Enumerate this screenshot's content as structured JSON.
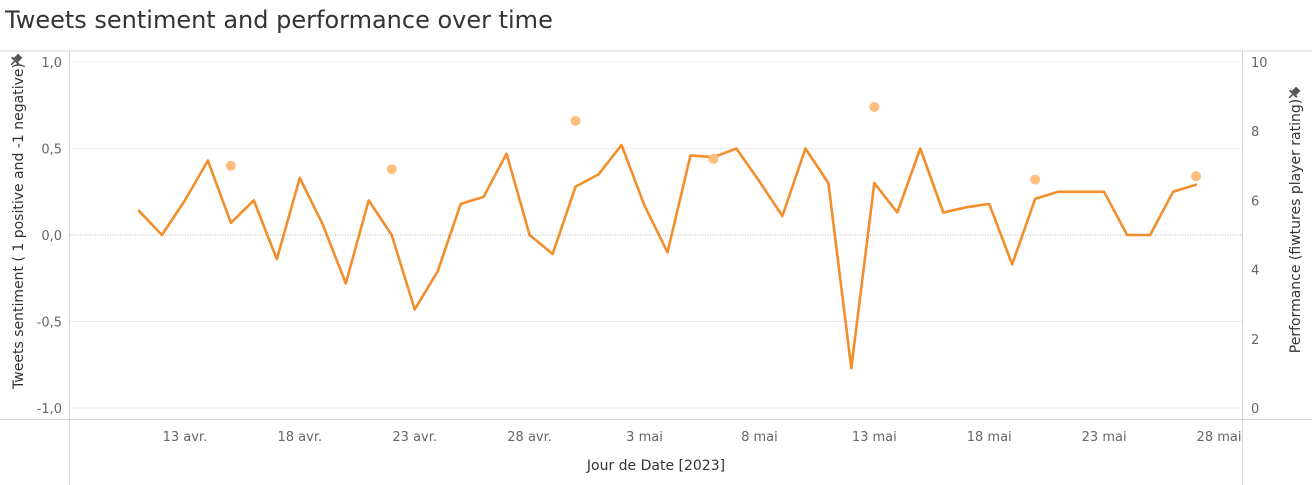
{
  "title": "Tweets sentiment and performance over time",
  "chart_data": {
    "type": "line",
    "title": "Tweets sentiment and performance over time",
    "xlabel": "Jour de Date [2023]",
    "ylabel_left": "Tweets sentiment ( 1 positive and -1 negative)",
    "ylabel_right": "Performance (fiwtures player rating)",
    "x_range": [
      "2023-04-08",
      "2023-05-29"
    ],
    "ylim_left": [
      -1,
      1
    ],
    "ylim_right": [
      0,
      10
    ],
    "ticks_left": [
      "1,0",
      "0,5",
      "0,0",
      "-0,5",
      "-1,0"
    ],
    "ticks_left_values": [
      1,
      0.5,
      0,
      -0.5,
      -1
    ],
    "ticks_right": [
      "10",
      "8",
      "6",
      "4",
      "2",
      "0"
    ],
    "ticks_right_values": [
      10,
      8,
      6,
      4,
      2,
      0
    ],
    "x_ticks": [
      {
        "date": "2023-04-13",
        "label": "13 avr."
      },
      {
        "date": "2023-04-18",
        "label": "18 avr."
      },
      {
        "date": "2023-04-23",
        "label": "23 avr."
      },
      {
        "date": "2023-04-28",
        "label": "28 avr."
      },
      {
        "date": "2023-05-03",
        "label": "3 mai"
      },
      {
        "date": "2023-05-08",
        "label": "8 mai"
      },
      {
        "date": "2023-05-13",
        "label": "13 mai"
      },
      {
        "date": "2023-05-18",
        "label": "18 mai"
      },
      {
        "date": "2023-05-23",
        "label": "23 mai"
      },
      {
        "date": "2023-05-28",
        "label": "28 mai"
      }
    ],
    "grid": true,
    "zero_line": true,
    "colors": {
      "sentiment": "#f28e2b",
      "performance": "#ffbe7d"
    },
    "sentiment": {
      "axis": "left",
      "dates": [
        "2023-04-11",
        "2023-04-12",
        "2023-04-13",
        "2023-04-14",
        "2023-04-15",
        "2023-04-16",
        "2023-04-17",
        "2023-04-18",
        "2023-04-19",
        "2023-04-20",
        "2023-04-21",
        "2023-04-22",
        "2023-04-23",
        "2023-04-24",
        "2023-04-25",
        "2023-04-26",
        "2023-04-27",
        "2023-04-28",
        "2023-04-29",
        "2023-04-30",
        "2023-05-01",
        "2023-05-02",
        "2023-05-03",
        "2023-05-04",
        "2023-05-05",
        "2023-05-06",
        "2023-05-07",
        "2023-05-08",
        "2023-05-09",
        "2023-05-10",
        "2023-05-11",
        "2023-05-12",
        "2023-05-13",
        "2023-05-14",
        "2023-05-15",
        "2023-05-16",
        "2023-05-17",
        "2023-05-18",
        "2023-05-19",
        "2023-05-20",
        "2023-05-21",
        "2023-05-22",
        "2023-05-23",
        "2023-05-24",
        "2023-05-25",
        "2023-05-26",
        "2023-05-27"
      ],
      "values": [
        0.14,
        0.0,
        0.2,
        0.43,
        0.07,
        0.2,
        -0.14,
        0.33,
        0.06,
        -0.28,
        0.2,
        0.0,
        -0.43,
        -0.21,
        0.18,
        0.22,
        0.47,
        0.0,
        -0.11,
        0.28,
        0.35,
        0.52,
        0.17,
        -0.1,
        0.46,
        0.45,
        0.5,
        0.31,
        0.11,
        0.5,
        0.3,
        -0.77,
        0.3,
        0.13,
        0.5,
        0.13,
        0.16,
        0.18,
        -0.17,
        0.21,
        0.25,
        0.25,
        0.25,
        0.0,
        0.0,
        0.25,
        0.29
      ]
    },
    "performance": {
      "axis": "right",
      "dates": [
        "2023-04-15",
        "2023-04-22",
        "2023-04-30",
        "2023-05-06",
        "2023-05-13",
        "2023-05-20",
        "2023-05-27"
      ],
      "values": [
        7.0,
        6.9,
        8.3,
        7.2,
        8.7,
        6.6,
        6.7
      ]
    }
  }
}
